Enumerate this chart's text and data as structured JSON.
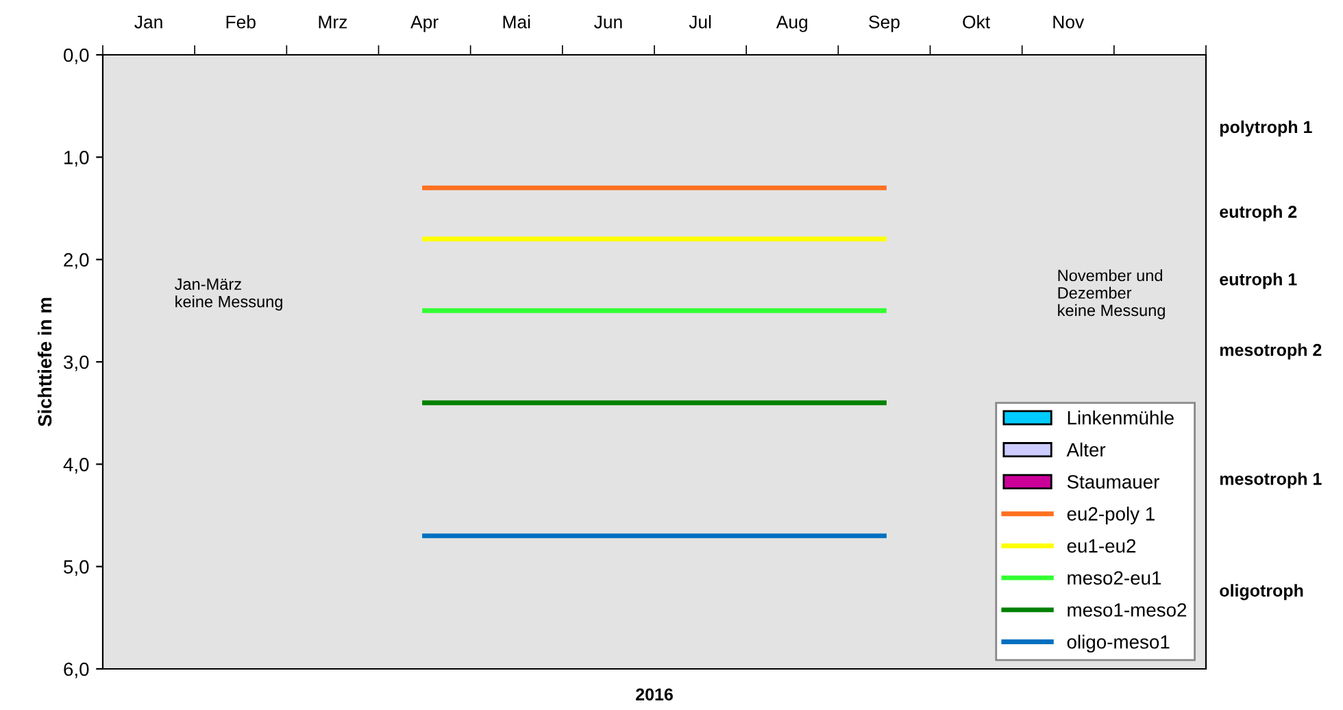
{
  "chart_data": {
    "type": "line",
    "xlabel": "2016",
    "ylabel": "Sichttiefe in m",
    "categories": [
      "Jan",
      "Feb",
      "Mrz",
      "Apr",
      "Mai",
      "Jun",
      "Jul",
      "Aug",
      "Sep",
      "Okt",
      "Nov",
      null
    ],
    "series": [
      {
        "name": "Linkenmühle",
        "type": "bar",
        "color": "#00ccff",
        "values": [
          null,
          null,
          null,
          null,
          null,
          null,
          null,
          null,
          null,
          null,
          null,
          null
        ]
      },
      {
        "name": "Alter",
        "type": "bar",
        "color": "#ccccff",
        "values": [
          null,
          null,
          null,
          null,
          null,
          null,
          null,
          null,
          null,
          null,
          null,
          null
        ]
      },
      {
        "name": "Staumauer",
        "type": "bar",
        "color": "#cc0099",
        "values": [
          null,
          null,
          null,
          null,
          null,
          null,
          null,
          null,
          null,
          null,
          null,
          null
        ]
      },
      {
        "name": "eu2-poly 1",
        "color": "#ff7020",
        "values": [
          null,
          null,
          null,
          1.3,
          1.3,
          1.3,
          1.3,
          1.3,
          1.3,
          null,
          null,
          null
        ]
      },
      {
        "name": "eu1-eu2",
        "color": "#ffff00",
        "values": [
          null,
          null,
          null,
          1.8,
          1.8,
          1.8,
          1.8,
          1.8,
          1.8,
          null,
          null,
          null
        ]
      },
      {
        "name": "meso2-eu1",
        "color": "#33ff33",
        "values": [
          null,
          null,
          null,
          2.5,
          2.5,
          2.5,
          2.5,
          2.5,
          2.5,
          null,
          null,
          null
        ]
      },
      {
        "name": "meso1-meso2",
        "color": "#008000",
        "values": [
          null,
          null,
          null,
          3.4,
          3.4,
          3.4,
          3.4,
          3.4,
          3.4,
          null,
          null,
          null
        ]
      },
      {
        "name": "oligo-meso1",
        "color": "#0070c0",
        "values": [
          null,
          null,
          null,
          4.7,
          4.7,
          4.7,
          4.7,
          4.7,
          4.7,
          null,
          null,
          null
        ]
      }
    ],
    "ylim": [
      6,
      0
    ],
    "yticks": [
      {
        "value": 0,
        "label": "0,0"
      },
      {
        "value": 1,
        "label": "1,0"
      },
      {
        "value": 2,
        "label": "2,0"
      },
      {
        "value": 3,
        "label": "3,0"
      },
      {
        "value": 4,
        "label": "4,0"
      },
      {
        "value": 5,
        "label": "5,0"
      },
      {
        "value": 6,
        "label": "6,0"
      }
    ],
    "annotations": [
      "Jan-März\nkeine Messung",
      "November und\nDezember\nkeine Messung",
      "polytroph 1",
      "eutroph 2",
      "eutroph 1",
      "mesotroph 2",
      "mesotroph 1",
      "oligotroph"
    ],
    "grid": false,
    "legend": "bottom right",
    "marker": "none",
    "line_style": "solid"
  }
}
